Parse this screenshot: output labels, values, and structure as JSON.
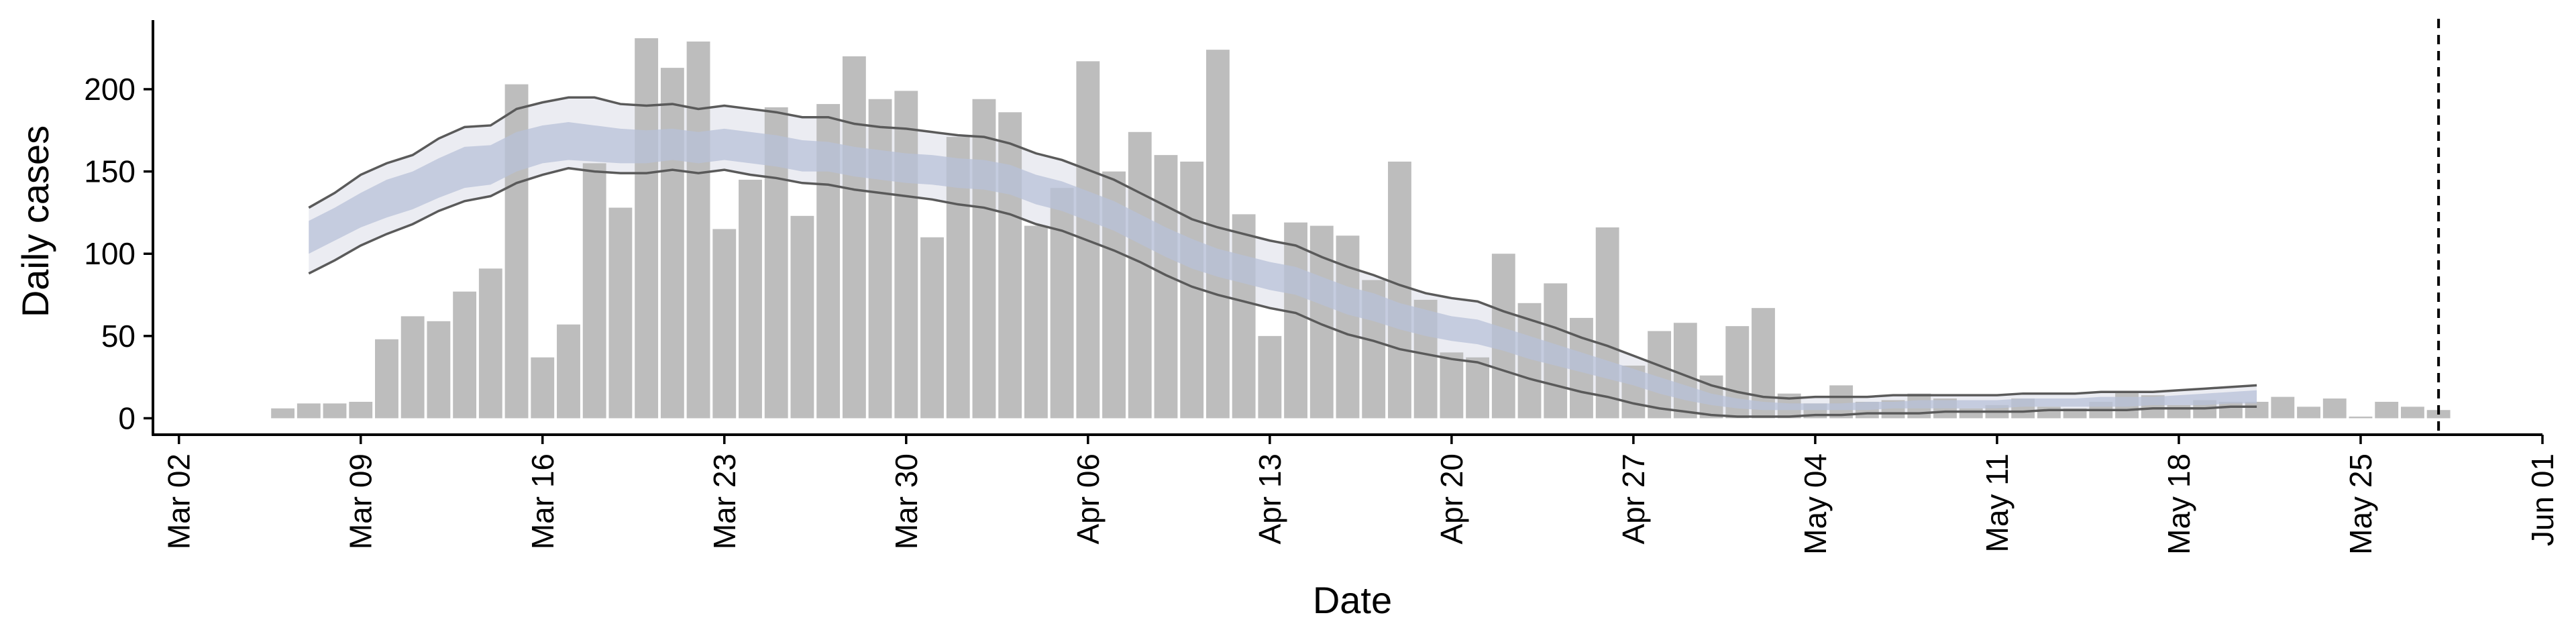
{
  "chart_data": {
    "type": "bar",
    "xlabel": "Date",
    "ylabel": "Daily cases",
    "ylim": [
      -10,
      242
    ],
    "xlim": [
      "2020-03-01",
      "2020-06-01"
    ],
    "y_ticks": [
      0,
      50,
      100,
      150,
      200
    ],
    "x_ticks": [
      {
        "date": "2020-03-02",
        "label": "Mar 02"
      },
      {
        "date": "2020-03-09",
        "label": "Mar 09"
      },
      {
        "date": "2020-03-16",
        "label": "Mar 16"
      },
      {
        "date": "2020-03-23",
        "label": "Mar 23"
      },
      {
        "date": "2020-03-30",
        "label": "Mar 30"
      },
      {
        "date": "2020-04-06",
        "label": "Apr 06"
      },
      {
        "date": "2020-04-13",
        "label": "Apr 13"
      },
      {
        "date": "2020-04-20",
        "label": "Apr 20"
      },
      {
        "date": "2020-04-27",
        "label": "Apr 27"
      },
      {
        "date": "2020-05-04",
        "label": "May 04"
      },
      {
        "date": "2020-05-11",
        "label": "May 11"
      },
      {
        "date": "2020-05-18",
        "label": "May 18"
      },
      {
        "date": "2020-05-25",
        "label": "May 25"
      },
      {
        "date": "2020-06-01",
        "label": "Jun 01"
      }
    ],
    "grid": false,
    "legend": "none",
    "colors": {
      "bars": "#bdbdbd",
      "outer_band": "#e4e6ee",
      "inner_band": "#b8c2d8",
      "band_lines": "#5a5a5a",
      "vline": "#000000"
    },
    "reported_cases": {
      "dates": [
        "2020-03-06",
        "2020-03-07",
        "2020-03-08",
        "2020-03-09",
        "2020-03-10",
        "2020-03-11",
        "2020-03-12",
        "2020-03-13",
        "2020-03-14",
        "2020-03-15",
        "2020-03-16",
        "2020-03-17",
        "2020-03-18",
        "2020-03-19",
        "2020-03-20",
        "2020-03-21",
        "2020-03-22",
        "2020-03-23",
        "2020-03-24",
        "2020-03-25",
        "2020-03-26",
        "2020-03-27",
        "2020-03-28",
        "2020-03-29",
        "2020-03-30",
        "2020-03-31",
        "2020-04-01",
        "2020-04-02",
        "2020-04-03",
        "2020-04-04",
        "2020-04-05",
        "2020-04-06",
        "2020-04-07",
        "2020-04-08",
        "2020-04-09",
        "2020-04-10",
        "2020-04-11",
        "2020-04-12",
        "2020-04-13",
        "2020-04-14",
        "2020-04-15",
        "2020-04-16",
        "2020-04-17",
        "2020-04-18",
        "2020-04-19",
        "2020-04-20",
        "2020-04-21",
        "2020-04-22",
        "2020-04-23",
        "2020-04-24",
        "2020-04-25",
        "2020-04-26",
        "2020-04-27",
        "2020-04-28",
        "2020-04-29",
        "2020-04-30",
        "2020-05-01",
        "2020-05-02",
        "2020-05-03",
        "2020-05-04",
        "2020-05-05",
        "2020-05-06",
        "2020-05-07",
        "2020-05-08",
        "2020-05-09",
        "2020-05-10",
        "2020-05-11",
        "2020-05-12",
        "2020-05-13",
        "2020-05-14",
        "2020-05-15",
        "2020-05-16",
        "2020-05-17",
        "2020-05-18",
        "2020-05-19",
        "2020-05-20",
        "2020-05-21",
        "2020-05-22",
        "2020-05-23",
        "2020-05-24",
        "2020-05-25",
        "2020-05-26",
        "2020-05-27",
        "2020-05-28"
      ],
      "values": [
        6,
        9,
        9,
        10,
        48,
        62,
        59,
        77,
        91,
        203,
        37,
        57,
        155,
        128,
        231,
        213,
        229,
        115,
        145,
        189,
        123,
        191,
        220,
        194,
        199,
        110,
        171,
        194,
        186,
        117,
        140,
        217,
        150,
        174,
        160,
        156,
        224,
        124,
        50,
        119,
        117,
        111,
        84,
        156,
        72,
        40,
        37,
        100,
        70,
        82,
        61,
        116,
        32,
        53,
        58,
        26,
        56,
        67,
        15,
        9,
        20,
        10,
        11,
        15,
        12,
        6,
        8,
        12,
        7,
        6,
        10,
        16,
        14,
        8,
        11,
        10,
        10,
        13,
        7,
        12,
        1,
        10,
        7,
        5
      ]
    },
    "estimate": {
      "dates": [
        "2020-03-07",
        "2020-03-08",
        "2020-03-09",
        "2020-03-10",
        "2020-03-11",
        "2020-03-12",
        "2020-03-13",
        "2020-03-14",
        "2020-03-15",
        "2020-03-16",
        "2020-03-17",
        "2020-03-18",
        "2020-03-19",
        "2020-03-20",
        "2020-03-21",
        "2020-03-22",
        "2020-03-23",
        "2020-03-24",
        "2020-03-25",
        "2020-03-26",
        "2020-03-27",
        "2020-03-28",
        "2020-03-29",
        "2020-03-30",
        "2020-03-31",
        "2020-04-01",
        "2020-04-02",
        "2020-04-03",
        "2020-04-04",
        "2020-04-05",
        "2020-04-06",
        "2020-04-07",
        "2020-04-08",
        "2020-04-09",
        "2020-04-10",
        "2020-04-11",
        "2020-04-12",
        "2020-04-13",
        "2020-04-14",
        "2020-04-15",
        "2020-04-16",
        "2020-04-17",
        "2020-04-18",
        "2020-04-19",
        "2020-04-20",
        "2020-04-21",
        "2020-04-22",
        "2020-04-23",
        "2020-04-24",
        "2020-04-25",
        "2020-04-26",
        "2020-04-27",
        "2020-04-28",
        "2020-04-29",
        "2020-04-30",
        "2020-05-01",
        "2020-05-02",
        "2020-05-03",
        "2020-05-04",
        "2020-05-05",
        "2020-05-06",
        "2020-05-07",
        "2020-05-08",
        "2020-05-09",
        "2020-05-10",
        "2020-05-11",
        "2020-05-12",
        "2020-05-13",
        "2020-05-14",
        "2020-05-15",
        "2020-05-16",
        "2020-05-17",
        "2020-05-18",
        "2020-05-19",
        "2020-05-20",
        "2020-05-21"
      ],
      "upper_90": [
        128,
        137,
        148,
        155,
        160,
        170,
        177,
        178,
        188,
        192,
        195,
        195,
        191,
        190,
        191,
        188,
        190,
        188,
        186,
        183,
        183,
        179,
        177,
        176,
        174,
        172,
        171,
        167,
        161,
        157,
        151,
        145,
        137,
        129,
        121,
        116,
        112,
        108,
        105,
        98,
        92,
        87,
        81,
        76,
        73,
        71,
        65,
        60,
        55,
        49,
        44,
        38,
        32,
        26,
        20,
        16,
        13,
        12,
        13,
        13,
        13,
        14,
        14,
        14,
        14,
        14,
        15,
        15,
        15,
        16,
        16,
        16,
        17,
        18,
        19,
        20
      ],
      "upper_50": [
        120,
        128,
        137,
        145,
        150,
        158,
        165,
        166,
        174,
        178,
        180,
        178,
        176,
        175,
        176,
        174,
        176,
        174,
        172,
        169,
        168,
        165,
        163,
        161,
        160,
        158,
        157,
        154,
        148,
        144,
        138,
        132,
        124,
        116,
        109,
        103,
        99,
        95,
        92,
        86,
        80,
        76,
        70,
        66,
        62,
        60,
        55,
        50,
        45,
        40,
        35,
        30,
        25,
        20,
        15,
        12,
        10,
        9,
        9,
        9,
        10,
        10,
        11,
        11,
        11,
        11,
        12,
        12,
        12,
        13,
        13,
        13,
        14,
        15,
        16,
        17
      ],
      "lower_50": [
        100,
        108,
        116,
        122,
        127,
        134,
        140,
        142,
        150,
        155,
        157,
        156,
        155,
        155,
        157,
        155,
        157,
        155,
        153,
        150,
        150,
        147,
        145,
        143,
        142,
        140,
        139,
        136,
        130,
        126,
        120,
        114,
        106,
        98,
        91,
        86,
        82,
        78,
        75,
        69,
        63,
        59,
        54,
        50,
        47,
        45,
        41,
        36,
        32,
        28,
        24,
        20,
        15,
        11,
        8,
        6,
        5,
        5,
        5,
        5,
        5,
        6,
        6,
        6,
        6,
        6,
        7,
        7,
        7,
        7,
        7,
        8,
        8,
        8,
        9,
        9
      ],
      "lower_90": [
        88,
        96,
        105,
        112,
        118,
        126,
        132,
        135,
        143,
        148,
        152,
        150,
        149,
        149,
        151,
        149,
        151,
        148,
        146,
        143,
        142,
        139,
        137,
        135,
        133,
        130,
        128,
        124,
        118,
        114,
        108,
        102,
        95,
        87,
        80,
        75,
        71,
        67,
        64,
        57,
        51,
        47,
        42,
        39,
        36,
        34,
        29,
        24,
        20,
        16,
        13,
        9,
        6,
        4,
        2,
        1,
        1,
        1,
        2,
        2,
        3,
        3,
        3,
        4,
        4,
        4,
        4,
        5,
        5,
        5,
        5,
        6,
        6,
        6,
        7,
        7
      ]
    },
    "vline": "2020-05-28"
  }
}
